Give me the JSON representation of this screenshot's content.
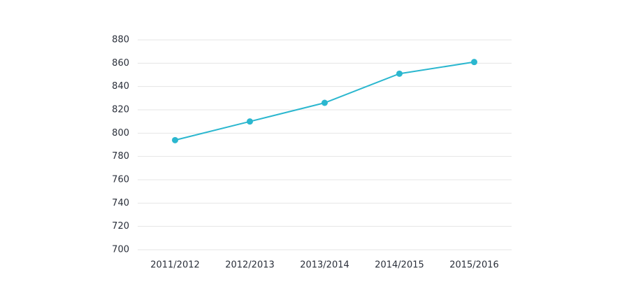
{
  "chart_data": {
    "type": "line",
    "categories": [
      "2011/2012",
      "2012/2013",
      "2013/2014",
      "2014/2015",
      "2015/2016"
    ],
    "series": [
      {
        "color": "#2bb7cf",
        "values": [
          794,
          810,
          826,
          851,
          861
        ]
      }
    ],
    "ylim": [
      700,
      880
    ],
    "yticks": [
      700,
      720,
      740,
      760,
      780,
      800,
      820,
      840,
      860,
      880
    ],
    "grid": true
  }
}
